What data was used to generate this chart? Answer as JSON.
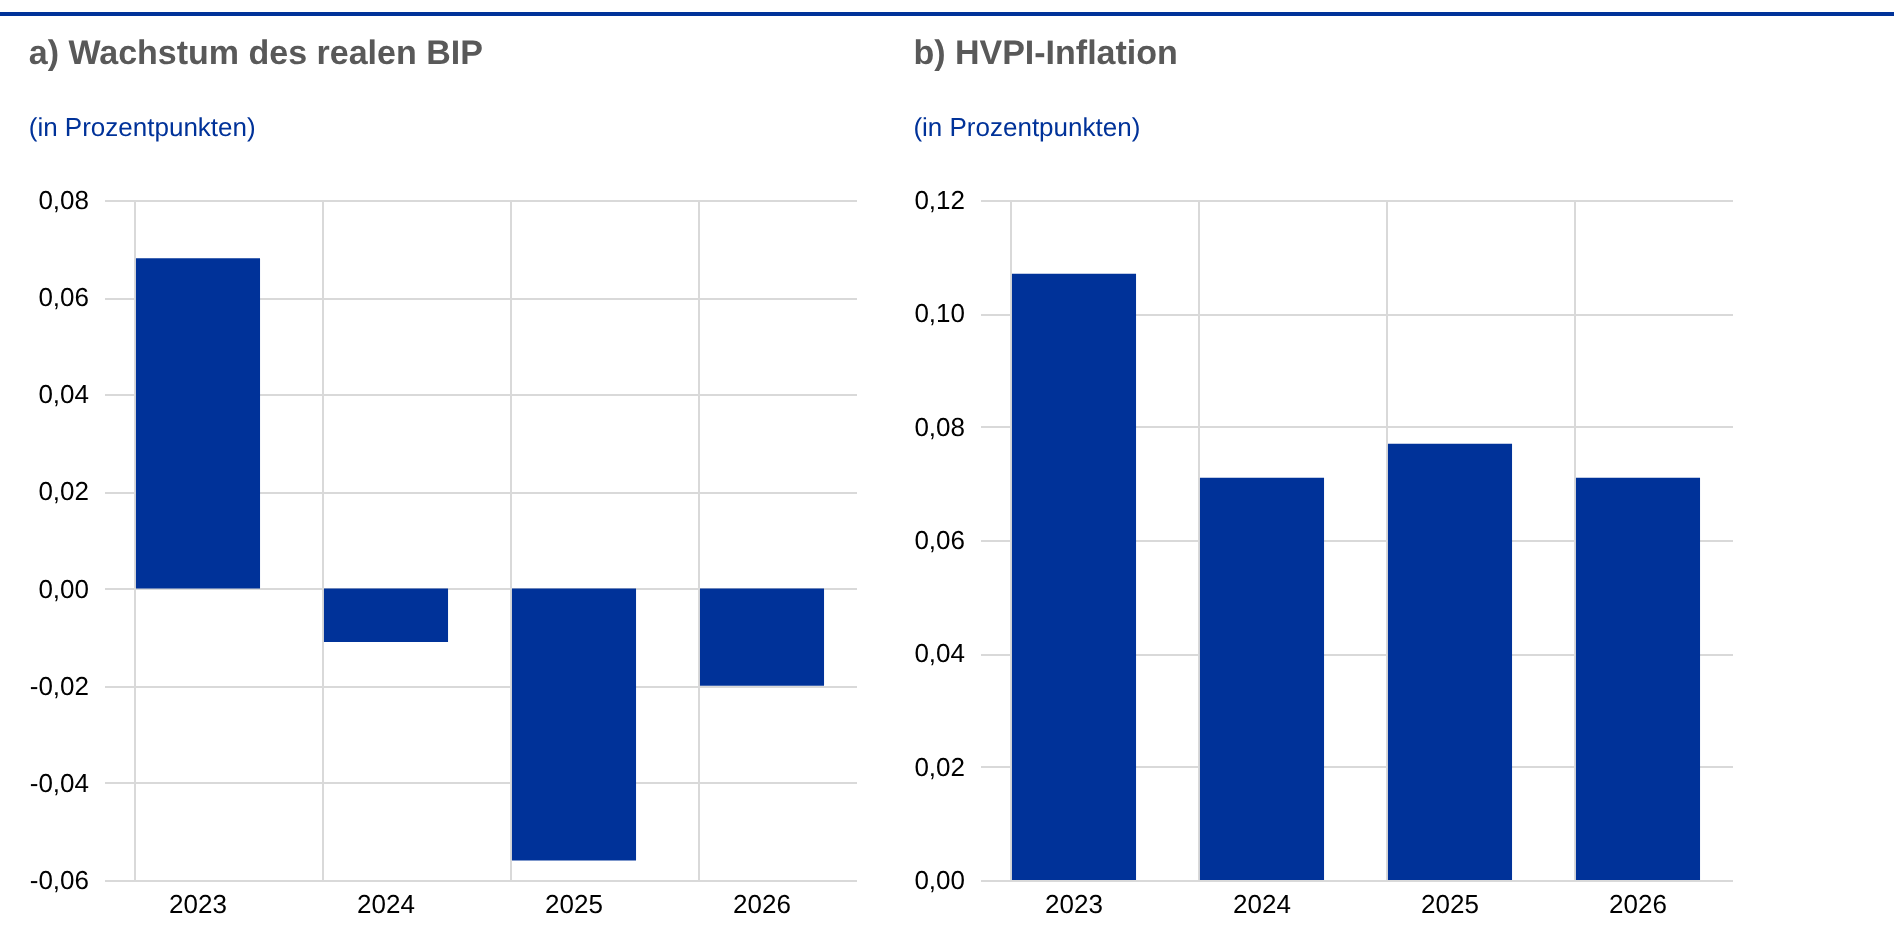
{
  "chart_data": [
    {
      "type": "bar",
      "title": "a) Wachstum des realen BIP",
      "subtitle": "(in Prozentpunkten)",
      "categories": [
        "2023",
        "2024",
        "2025",
        "2026"
      ],
      "values": [
        0.068,
        -0.011,
        -0.056,
        -0.02
      ],
      "color": "#003299",
      "ylim": [
        -0.06,
        0.08
      ],
      "yticks": [
        {
          "value": -0.06,
          "label": "-0,06"
        },
        {
          "value": -0.04,
          "label": "-0,04"
        },
        {
          "value": -0.02,
          "label": "-0,02"
        },
        {
          "value": 0,
          "label": "0,00"
        },
        {
          "value": 0.02,
          "label": "0,02"
        },
        {
          "value": 0.04,
          "label": "0,04"
        },
        {
          "value": 0.06,
          "label": "0,06"
        },
        {
          "value": 0.08,
          "label": "0,08"
        }
      ],
      "grid": true
    },
    {
      "type": "bar",
      "title": "b) HVPI-Inflation",
      "subtitle": "(in Prozentpunkten)",
      "categories": [
        "2023",
        "2024",
        "2025",
        "2026"
      ],
      "values": [
        0.107,
        0.071,
        0.077,
        0.071
      ],
      "color": "#003299",
      "ylim": [
        0,
        0.12
      ],
      "yticks": [
        {
          "value": 0,
          "label": "0,00"
        },
        {
          "value": 0.02,
          "label": "0,02"
        },
        {
          "value": 0.04,
          "label": "0,04"
        },
        {
          "value": 0.06,
          "label": "0,06"
        },
        {
          "value": 0.08,
          "label": "0,08"
        },
        {
          "value": 0.1,
          "label": "0,10"
        },
        {
          "value": 0.12,
          "label": "0,12"
        }
      ],
      "grid": true
    }
  ]
}
